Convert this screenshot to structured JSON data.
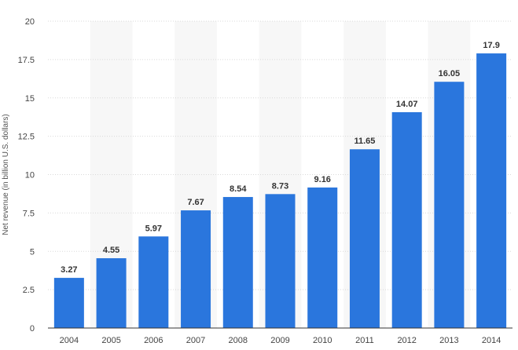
{
  "chart_data": {
    "type": "bar",
    "title": "",
    "xlabel": "",
    "ylabel": "Net revenue (in billion U.S. dollars)",
    "categories": [
      "2004",
      "2005",
      "2006",
      "2007",
      "2008",
      "2009",
      "2010",
      "2011",
      "2012",
      "2013",
      "2014"
    ],
    "values": [
      3.27,
      4.55,
      5.97,
      7.67,
      8.54,
      8.73,
      9.16,
      11.65,
      14.07,
      16.05,
      17.9
    ],
    "value_labels": [
      "3.27",
      "4.55",
      "5.97",
      "7.67",
      "8.54",
      "8.73",
      "9.16",
      "11.65",
      "14.07",
      "16.05",
      "17.9"
    ],
    "ylim": [
      0,
      20
    ],
    "yticks": [
      0,
      2.5,
      5,
      7.5,
      10,
      12.5,
      15,
      17.5,
      20
    ],
    "ytick_labels": [
      "0",
      "2.5",
      "5",
      "7.5",
      "10",
      "12.5",
      "15",
      "17.5",
      "20"
    ],
    "grid": true,
    "legend": "none",
    "colors": {
      "bar": "#2a76dd",
      "grid": "#d9d9d9",
      "band": "#f7f7f7",
      "axis": "#333333"
    }
  }
}
